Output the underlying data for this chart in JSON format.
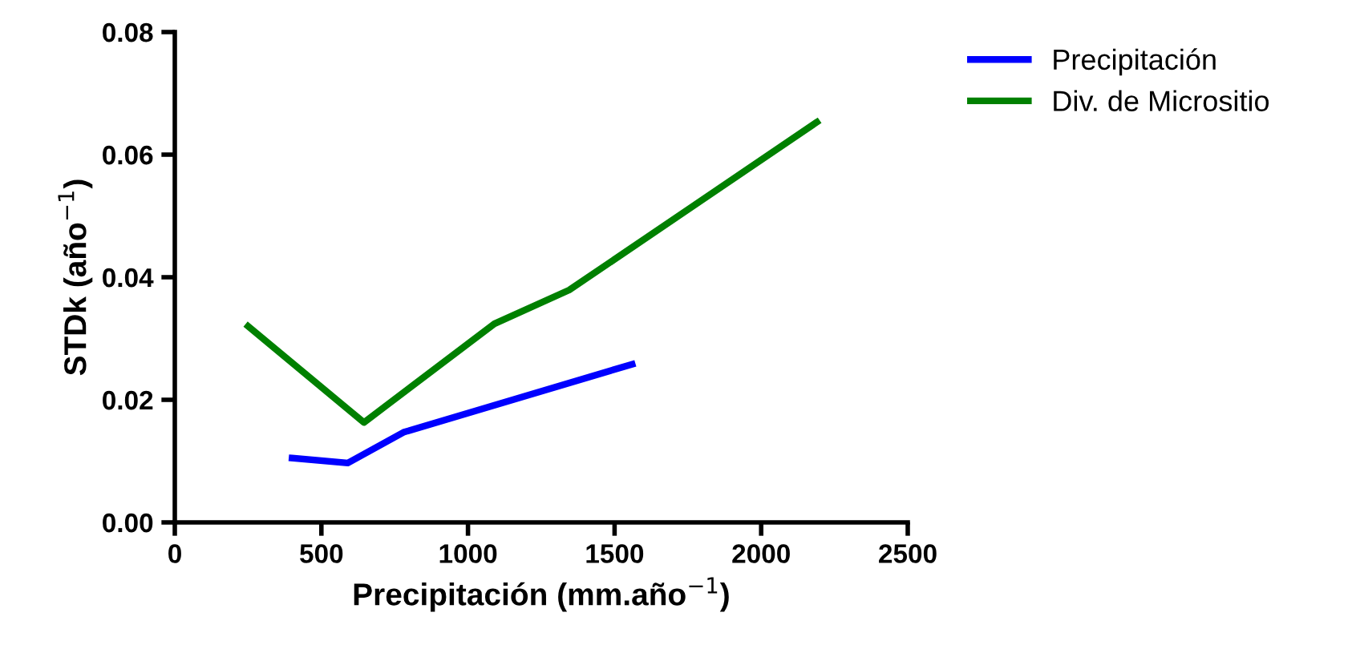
{
  "chart_data": {
    "type": "line",
    "xlabel": "Precipitación (mm.año$^{−1}$)",
    "ylabel": "STDk (año$^{−1}$)",
    "xlim": [
      0,
      2500
    ],
    "xticks": [
      0,
      500,
      1000,
      1500,
      2000,
      2500
    ],
    "ylim": [
      0,
      0.08
    ],
    "yticks": [
      {
        "value": 0,
        "label": "0.00"
      },
      {
        "value": 0.02,
        "label": "0.02"
      },
      {
        "value": 0.04,
        "label": "0.04"
      },
      {
        "value": 0.06,
        "label": "0.06"
      },
      {
        "value": 0.08,
        "label": "0.08"
      }
    ],
    "legend": "top right",
    "grid": false,
    "marker": "none",
    "line_style": "solid",
    "series": [
      {
        "name": "Precipitación",
        "color": "#0000ff",
        "x": [
          400,
          590,
          780,
          1560
        ],
        "values": [
          0.0105,
          0.0097,
          0.0147,
          0.0258
        ]
      },
      {
        "name": "Div. de Micrositio",
        "color": "#008000",
        "x": [
          250,
          645,
          1090,
          1345,
          2190
        ],
        "values": [
          0.032,
          0.0163,
          0.0324,
          0.0379,
          0.0653
        ]
      }
    ]
  }
}
